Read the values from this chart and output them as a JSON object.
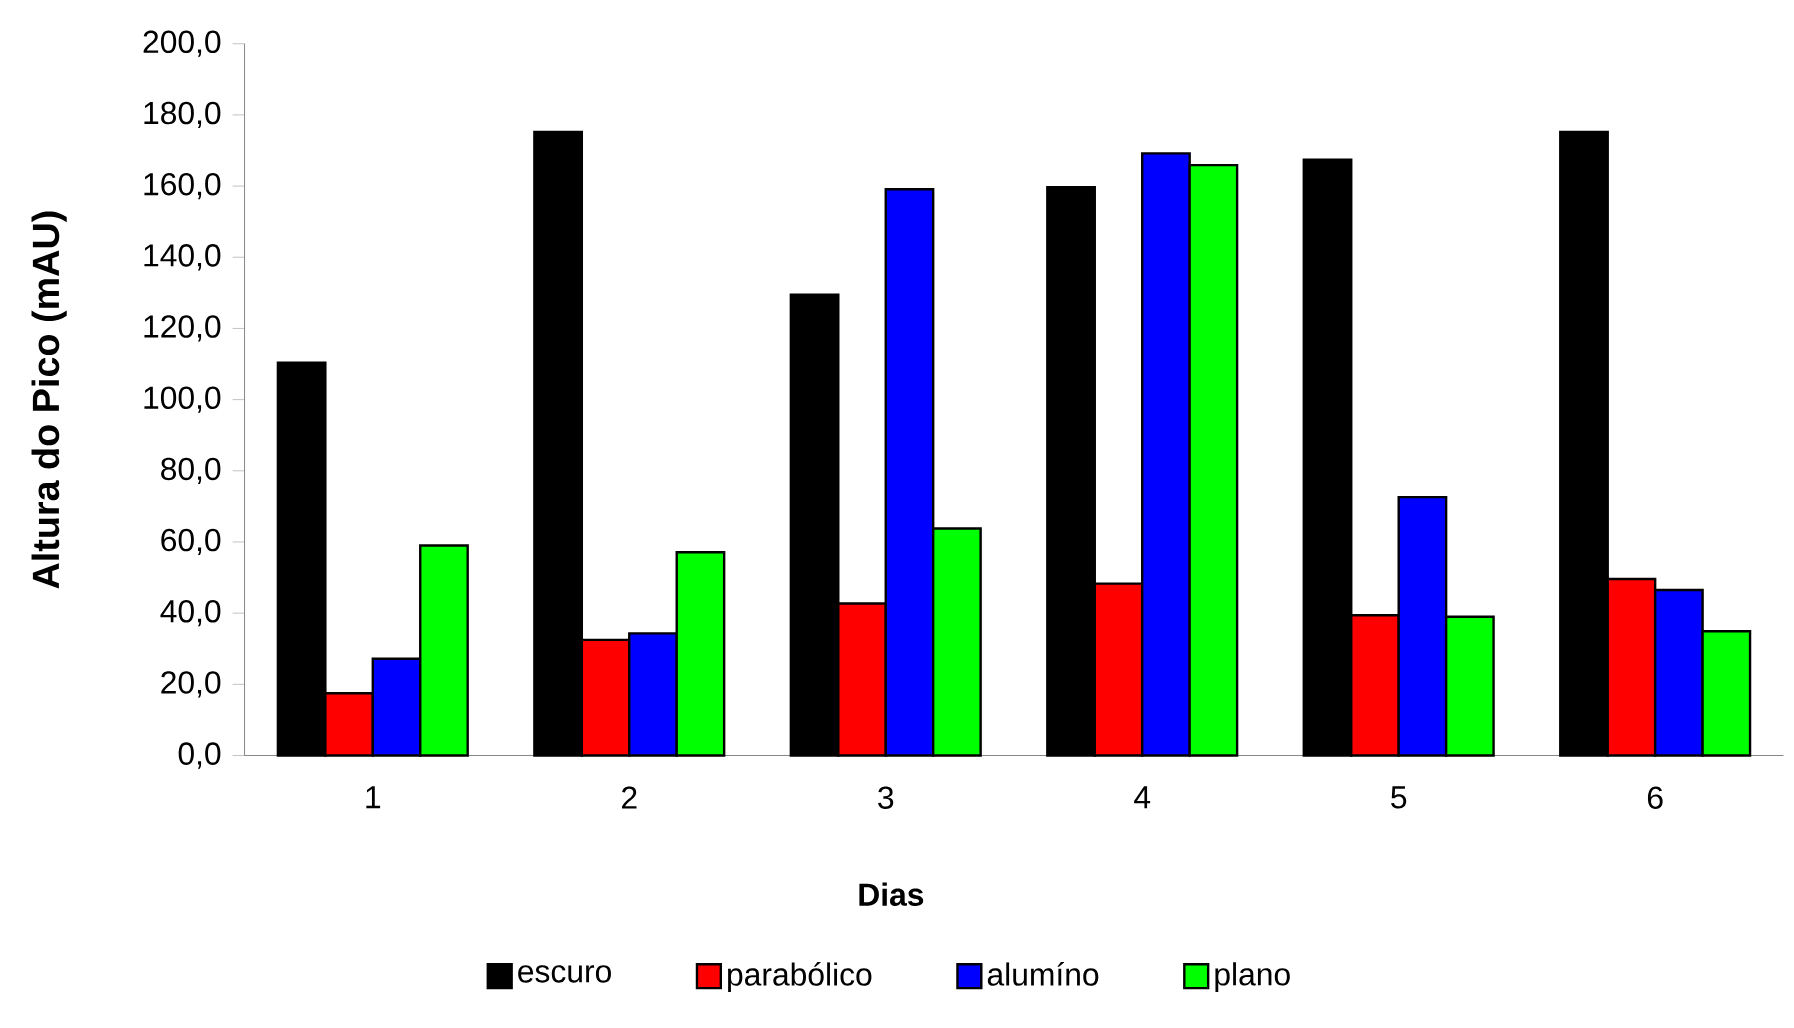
{
  "chart_data": {
    "type": "bar",
    "xlabel": "Dias",
    "ylabel": "Altura do Pico (mAU)",
    "categories": [
      "1",
      "2",
      "3",
      "4",
      "5",
      "6"
    ],
    "series": [
      {
        "name": "escuro",
        "color": "#000000",
        "values": [
          110.4,
          175.2,
          129.5,
          159.7,
          167.4,
          175.2
        ]
      },
      {
        "name": "parabólico",
        "color": "#ff0000",
        "values": [
          17.5,
          32.5,
          42.7,
          48.3,
          39.4,
          49.6
        ]
      },
      {
        "name": "alumíno",
        "color": "#0000ff",
        "values": [
          27.2,
          34.3,
          159.1,
          169.2,
          72.6,
          46.5
        ]
      },
      {
        "name": "plano",
        "color": "#00ff00",
        "values": [
          59.0,
          57.1,
          63.8,
          165.9,
          39.0,
          34.9
        ]
      }
    ],
    "ylim": [
      0,
      200
    ],
    "yticks": [
      {
        "value": 0,
        "label": "0,0"
      },
      {
        "value": 20,
        "label": "20,0"
      },
      {
        "value": 40,
        "label": "40,0"
      },
      {
        "value": 60,
        "label": "60,0"
      },
      {
        "value": 80,
        "label": "80,0"
      },
      {
        "value": 100,
        "label": "100,0"
      },
      {
        "value": 120,
        "label": "120,0"
      },
      {
        "value": 140,
        "label": "140,0"
      },
      {
        "value": 160,
        "label": "160,0"
      },
      {
        "value": 180,
        "label": "180,0"
      },
      {
        "value": 200,
        "label": "200,0"
      }
    ],
    "grid": false,
    "legend": "bottom"
  }
}
